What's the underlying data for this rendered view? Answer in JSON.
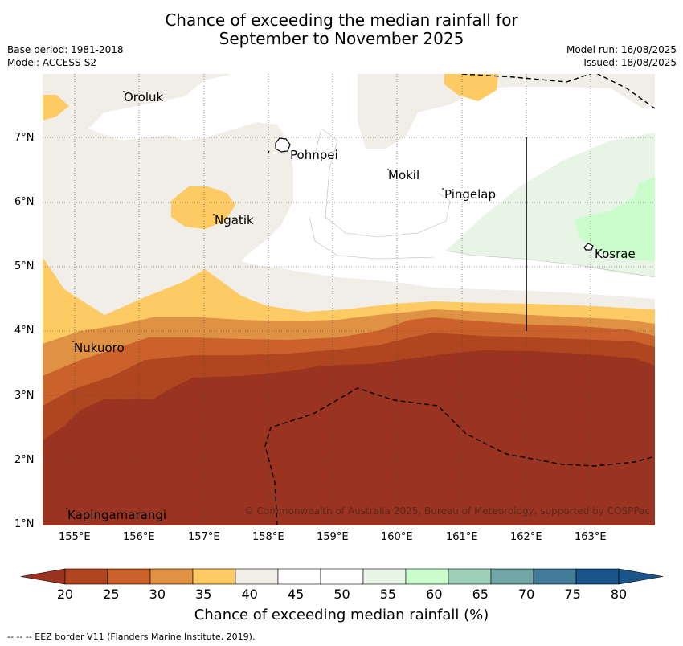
{
  "header": {
    "title_line1": "Chance of exceeding the median rainfall for",
    "title_line2": "September to November 2025",
    "base_period": "Base period: 1981-2018",
    "model": "Model: ACCESS-S2",
    "model_run": "Model run: 16/08/2025",
    "issued": "Issued: 18/08/2025"
  },
  "map": {
    "lat_labels": [
      "7°N",
      "6°N",
      "5°N",
      "4°N",
      "3°N",
      "2°N",
      "1°N"
    ],
    "lon_labels": [
      "155°E",
      "156°E",
      "157°E",
      "158°E",
      "159°E",
      "160°E",
      "161°E",
      "162°E",
      "163°E"
    ],
    "places": {
      "oroluk": "Oroluk",
      "pohnpei": "Pohnpei",
      "mokil": "Mokil",
      "pingelap": "Pingelap",
      "ngatik": "Ngatik",
      "kosrae": "Kosrae",
      "nukuoro": "Nukuoro",
      "kapingamarangi": "Kapingamarangi"
    },
    "copyright": "© Commonwealth of Australia 2025, Bureau of Meteorology, supported by COSPPac",
    "colors": {
      "c20": "#9a331f",
      "c25": "#b0461f",
      "c30": "#cb622c",
      "c35": "#e09244",
      "c40": "#fdca64",
      "c45": "#f1ede7",
      "c55": "#ffffff",
      "c60": "#e8f5e6",
      "c65": "#cbfdcc"
    }
  },
  "colorbar": {
    "ticks": [
      "20",
      "25",
      "30",
      "35",
      "40",
      "45",
      "50",
      "55",
      "60",
      "65",
      "70",
      "75",
      "80"
    ],
    "colors": [
      "#b0461f",
      "#cb622c",
      "#e09244",
      "#fdca64",
      "#f1ede7",
      "#ffffff",
      "#ffffff",
      "#e8f5e6",
      "#cbfdcc",
      "#9ed0b7",
      "#71a6a7",
      "#447b99",
      "#1b5488"
    ],
    "under_color": "#9a331f",
    "over_color": "#1b5488",
    "title": "Chance of exceeding median rainfall (%)"
  },
  "footnote": "--  --  -- EEZ border V11 (Flanders Marine Institute, 2019)."
}
